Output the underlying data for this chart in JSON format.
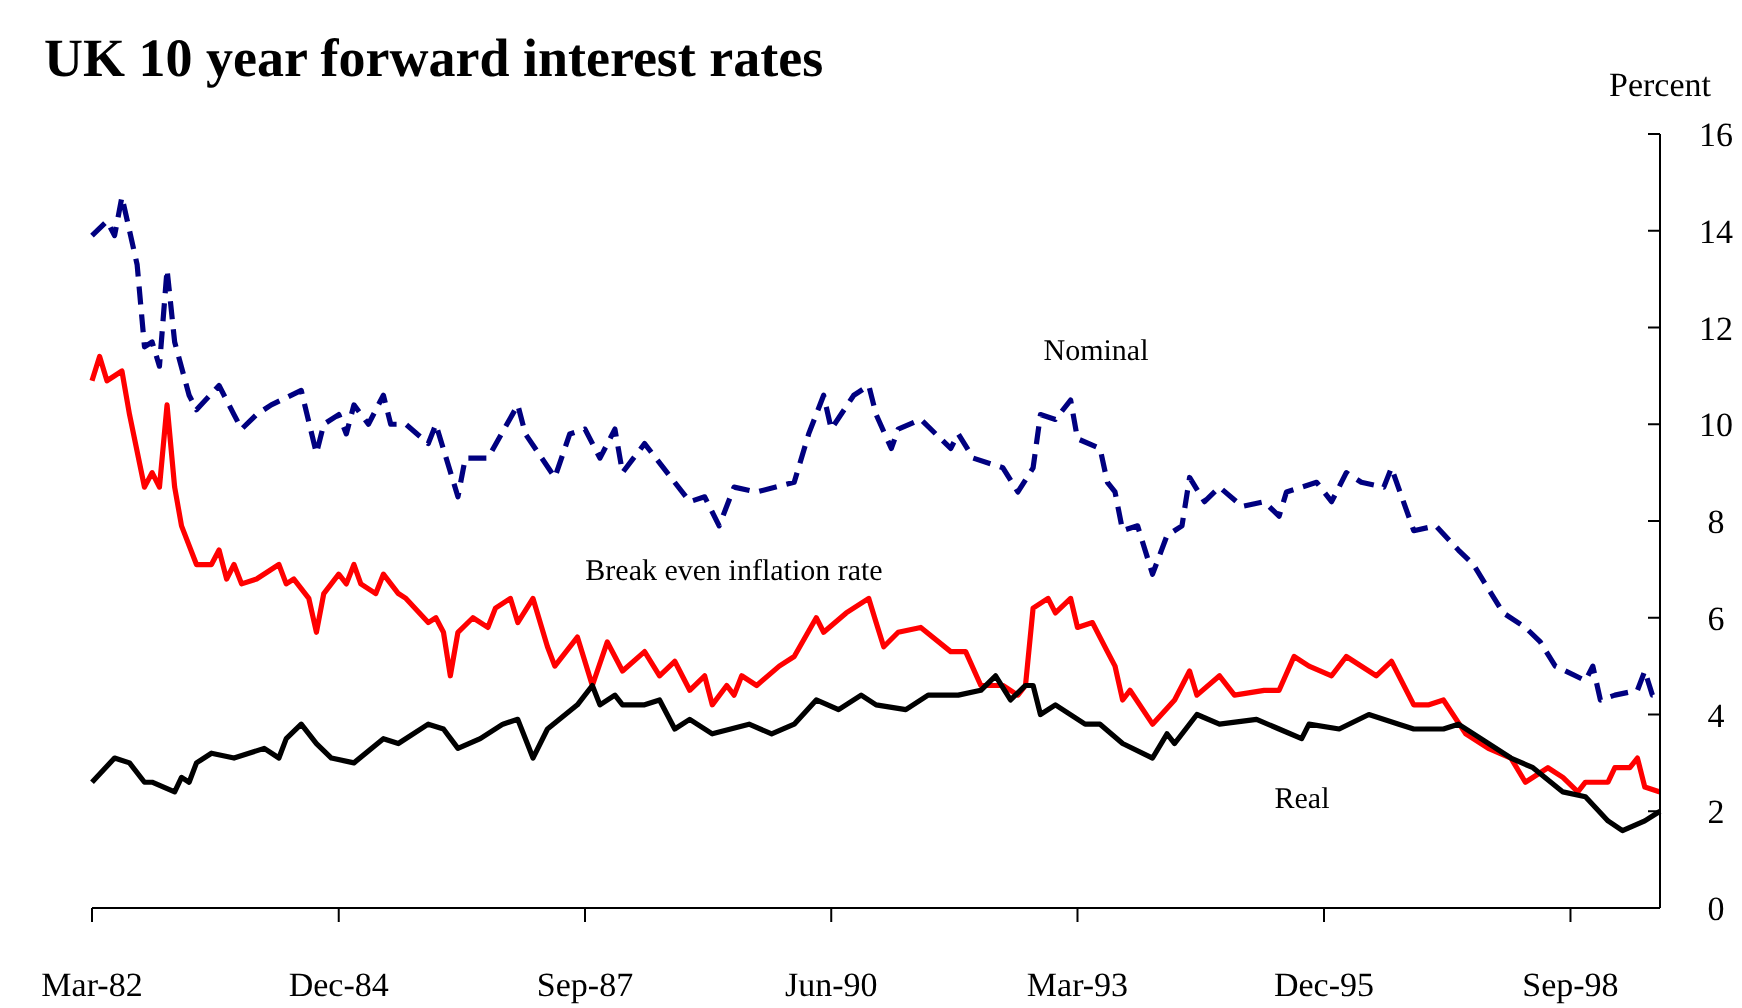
{
  "chart_data": {
    "type": "line",
    "title": "UK 10 year forward interest rates",
    "ylabel": "Percent",
    "xlim": [
      "1982-03",
      "1999-09"
    ],
    "xticks": [
      {
        "value": "1982-03",
        "label": "Mar-82"
      },
      {
        "value": "1984-12",
        "label": "Dec-84"
      },
      {
        "value": "1987-09",
        "label": "Sep-87"
      },
      {
        "value": "1990-06",
        "label": "Jun-90"
      },
      {
        "value": "1993-03",
        "label": "Mar-93"
      },
      {
        "value": "1995-12",
        "label": "Dec-95"
      },
      {
        "value": "1998-09",
        "label": "Sep-98"
      }
    ],
    "ylim": [
      0,
      16
    ],
    "yticks": [
      0,
      2,
      4,
      6,
      8,
      10,
      12,
      14,
      16
    ],
    "grid": false,
    "series": [
      {
        "name": "Nominal",
        "color": "#000080",
        "line_style": "dashed",
        "x": [
          "1982-03",
          "1982-05",
          "1982-06",
          "1982-07",
          "1982-09",
          "1982-10",
          "1982-11",
          "1982-12",
          "1983-01",
          "1983-02",
          "1983-04",
          "1983-05",
          "1983-08",
          "1983-10",
          "1983-11",
          "1984-01",
          "1984-03",
          "1984-07",
          "1984-09",
          "1984-10",
          "1984-12",
          "1985-01",
          "1985-02",
          "1985-04",
          "1985-06",
          "1985-07",
          "1985-09",
          "1985-12",
          "1986-01",
          "1986-04",
          "1986-05",
          "1986-08",
          "1986-12",
          "1987-01",
          "1987-05",
          "1987-07",
          "1987-09",
          "1987-11",
          "1988-01",
          "1988-02",
          "1988-05",
          "1988-08",
          "1988-11",
          "1989-01",
          "1989-03",
          "1989-05",
          "1989-08",
          "1990-01",
          "1990-03",
          "1990-05",
          "1990-06",
          "1990-09",
          "1990-11",
          "1990-12",
          "1991-02",
          "1991-03",
          "1991-06",
          "1991-10",
          "1991-11",
          "1992-01",
          "1992-05",
          "1992-07",
          "1992-09",
          "1992-10",
          "1992-12",
          "1993-02",
          "1993-03",
          "1993-06",
          "1993-07",
          "1993-08",
          "1993-09",
          "1993-11",
          "1994-01",
          "1994-03",
          "1994-05",
          "1994-06",
          "1994-08",
          "1994-10",
          "1995-01",
          "1995-04",
          "1995-06",
          "1995-07",
          "1995-11",
          "1996-01",
          "1996-03",
          "1996-05",
          "1996-08",
          "1996-09",
          "1996-12",
          "1997-03",
          "1997-06",
          "1997-08",
          "1997-10",
          "1997-12",
          "1998-03",
          "1998-05",
          "1998-07",
          "1998-11",
          "1998-12",
          "1999-01",
          "1999-03",
          "1999-06",
          "1999-07",
          "1999-08",
          "1999-09"
        ],
        "values": [
          13.9,
          14.2,
          13.9,
          14.7,
          13.3,
          11.6,
          11.7,
          11.2,
          13.2,
          11.7,
          10.6,
          10.3,
          10.8,
          10.2,
          9.9,
          10.2,
          10.4,
          10.7,
          9.4,
          10.0,
          10.2,
          9.8,
          10.4,
          10.0,
          10.6,
          10.0,
          10.0,
          9.6,
          10.0,
          8.5,
          9.3,
          9.3,
          10.4,
          9.8,
          8.9,
          9.8,
          9.9,
          9.3,
          9.9,
          9.0,
          9.6,
          9.0,
          8.4,
          8.5,
          7.9,
          8.7,
          8.6,
          8.8,
          9.8,
          10.6,
          9.9,
          10.6,
          10.8,
          10.2,
          9.5,
          9.9,
          10.1,
          9.5,
          9.8,
          9.3,
          9.1,
          8.6,
          9.1,
          10.2,
          10.1,
          10.5,
          9.7,
          9.5,
          8.8,
          8.6,
          7.8,
          7.9,
          6.9,
          7.7,
          7.9,
          8.9,
          8.4,
          8.7,
          8.3,
          8.4,
          8.1,
          8.6,
          8.8,
          8.4,
          9.0,
          8.8,
          8.7,
          9.1,
          7.8,
          7.9,
          7.4,
          7.1,
          6.6,
          6.1,
          5.8,
          5.5,
          5.0,
          4.7,
          5.0,
          4.3,
          4.4,
          4.5,
          4.9,
          4.4,
          4.4
        ]
      },
      {
        "name": "Break even inflation rate",
        "color": "#ff0000",
        "line_style": "solid",
        "x": [
          "1982-03",
          "1982-04",
          "1982-05",
          "1982-07",
          "1982-08",
          "1982-10",
          "1982-11",
          "1982-12",
          "1983-01",
          "1983-02",
          "1983-03",
          "1983-05",
          "1983-07",
          "1983-08",
          "1983-09",
          "1983-10",
          "1983-11",
          "1984-01",
          "1984-04",
          "1984-05",
          "1984-06",
          "1984-08",
          "1984-09",
          "1984-10",
          "1984-12",
          "1985-01",
          "1985-02",
          "1985-03",
          "1985-05",
          "1985-06",
          "1985-08",
          "1985-09",
          "1985-12",
          "1986-01",
          "1986-02",
          "1986-03",
          "1986-04",
          "1986-06",
          "1986-08",
          "1986-09",
          "1986-11",
          "1986-12",
          "1987-02",
          "1987-04",
          "1987-05",
          "1987-08",
          "1987-10",
          "1987-12",
          "1988-02",
          "1988-05",
          "1988-07",
          "1988-09",
          "1988-11",
          "1989-01",
          "1989-02",
          "1989-04",
          "1989-05",
          "1989-06",
          "1989-08",
          "1989-11",
          "1990-01",
          "1990-04",
          "1990-05",
          "1990-08",
          "1990-11",
          "1990-12",
          "1991-01",
          "1991-03",
          "1991-06",
          "1991-10",
          "1991-12",
          "1992-02",
          "1992-05",
          "1992-07",
          "1992-08",
          "1992-09",
          "1992-11",
          "1992-12",
          "1993-02",
          "1993-03",
          "1993-05",
          "1993-07",
          "1993-08",
          "1993-09",
          "1993-10",
          "1994-01",
          "1994-04",
          "1994-06",
          "1994-07",
          "1994-10",
          "1994-12",
          "1995-04",
          "1995-06",
          "1995-08",
          "1995-10",
          "1996-01",
          "1996-03",
          "1996-07",
          "1996-09",
          "1996-12",
          "1997-02",
          "1997-04",
          "1997-07",
          "1997-10",
          "1998-01",
          "1998-03",
          "1998-06",
          "1998-08",
          "1998-10",
          "1998-11",
          "1999-02",
          "1999-03",
          "1999-05",
          "1999-06",
          "1999-07",
          "1999-09"
        ],
        "values": [
          10.9,
          11.4,
          10.9,
          11.1,
          10.2,
          8.7,
          9.0,
          8.7,
          10.4,
          8.7,
          7.9,
          7.1,
          7.1,
          7.4,
          6.8,
          7.1,
          6.7,
          6.8,
          7.1,
          6.7,
          6.8,
          6.4,
          5.7,
          6.5,
          6.9,
          6.7,
          7.1,
          6.7,
          6.5,
          6.9,
          6.5,
          6.4,
          5.9,
          6.0,
          5.7,
          4.8,
          5.7,
          6.0,
          5.8,
          6.2,
          6.4,
          5.9,
          6.4,
          5.4,
          5.0,
          5.6,
          4.6,
          5.5,
          4.9,
          5.3,
          4.8,
          5.1,
          4.5,
          4.8,
          4.2,
          4.6,
          4.4,
          4.8,
          4.6,
          5.0,
          5.2,
          6.0,
          5.7,
          6.1,
          6.4,
          5.9,
          5.4,
          5.7,
          5.8,
          5.3,
          5.3,
          4.6,
          4.6,
          4.4,
          4.6,
          6.2,
          6.4,
          6.1,
          6.4,
          5.8,
          5.9,
          5.3,
          5.0,
          4.3,
          4.5,
          3.8,
          4.3,
          4.9,
          4.4,
          4.8,
          4.4,
          4.5,
          4.5,
          5.2,
          5.0,
          4.8,
          5.2,
          4.8,
          5.1,
          4.2,
          4.2,
          4.3,
          3.6,
          3.3,
          3.1,
          2.6,
          2.9,
          2.7,
          2.4,
          2.6,
          2.6,
          2.9,
          2.9,
          3.1,
          2.5,
          2.4
        ]
      },
      {
        "name": "Real",
        "color": "#000000",
        "line_style": "solid",
        "x": [
          "1982-03",
          "1982-06",
          "1982-08",
          "1982-10",
          "1982-11",
          "1983-02",
          "1983-03",
          "1983-04",
          "1983-05",
          "1983-07",
          "1983-10",
          "1984-02",
          "1984-04",
          "1984-05",
          "1984-07",
          "1984-09",
          "1984-11",
          "1985-02",
          "1985-06",
          "1985-08",
          "1985-12",
          "1986-02",
          "1986-04",
          "1986-07",
          "1986-10",
          "1986-12",
          "1987-02",
          "1987-04",
          "1987-08",
          "1987-10",
          "1987-11",
          "1988-01",
          "1988-02",
          "1988-05",
          "1988-07",
          "1988-09",
          "1988-11",
          "1989-02",
          "1989-07",
          "1989-10",
          "1990-01",
          "1990-04",
          "1990-07",
          "1990-10",
          "1990-12",
          "1991-04",
          "1991-07",
          "1991-11",
          "1992-02",
          "1992-04",
          "1992-06",
          "1992-08",
          "1992-09",
          "1992-10",
          "1992-12",
          "1993-04",
          "1993-06",
          "1993-09",
          "1994-01",
          "1994-03",
          "1994-04",
          "1994-07",
          "1994-10",
          "1995-03",
          "1995-06",
          "1995-09",
          "1995-10",
          "1996-02",
          "1996-06",
          "1996-10",
          "1996-12",
          "1997-04",
          "1997-06",
          "1997-09",
          "1998-01",
          "1998-04",
          "1998-08",
          "1998-11",
          "1999-02",
          "1999-04",
          "1999-07",
          "1999-09"
        ],
        "values": [
          2.6,
          3.1,
          3.0,
          2.6,
          2.6,
          2.4,
          2.7,
          2.6,
          3.0,
          3.2,
          3.1,
          3.3,
          3.1,
          3.5,
          3.8,
          3.4,
          3.1,
          3.0,
          3.5,
          3.4,
          3.8,
          3.7,
          3.3,
          3.5,
          3.8,
          3.9,
          3.1,
          3.7,
          4.2,
          4.6,
          4.2,
          4.4,
          4.2,
          4.2,
          4.3,
          3.7,
          3.9,
          3.6,
          3.8,
          3.6,
          3.8,
          4.3,
          4.1,
          4.4,
          4.2,
          4.1,
          4.4,
          4.4,
          4.5,
          4.8,
          4.3,
          4.6,
          4.6,
          4.0,
          4.2,
          3.8,
          3.8,
          3.4,
          3.1,
          3.6,
          3.4,
          4.0,
          3.8,
          3.9,
          3.7,
          3.5,
          3.8,
          3.7,
          4.0,
          3.8,
          3.7,
          3.7,
          3.8,
          3.5,
          3.1,
          2.9,
          2.4,
          2.3,
          1.8,
          1.6,
          1.8,
          2.0
        ]
      }
    ]
  }
}
